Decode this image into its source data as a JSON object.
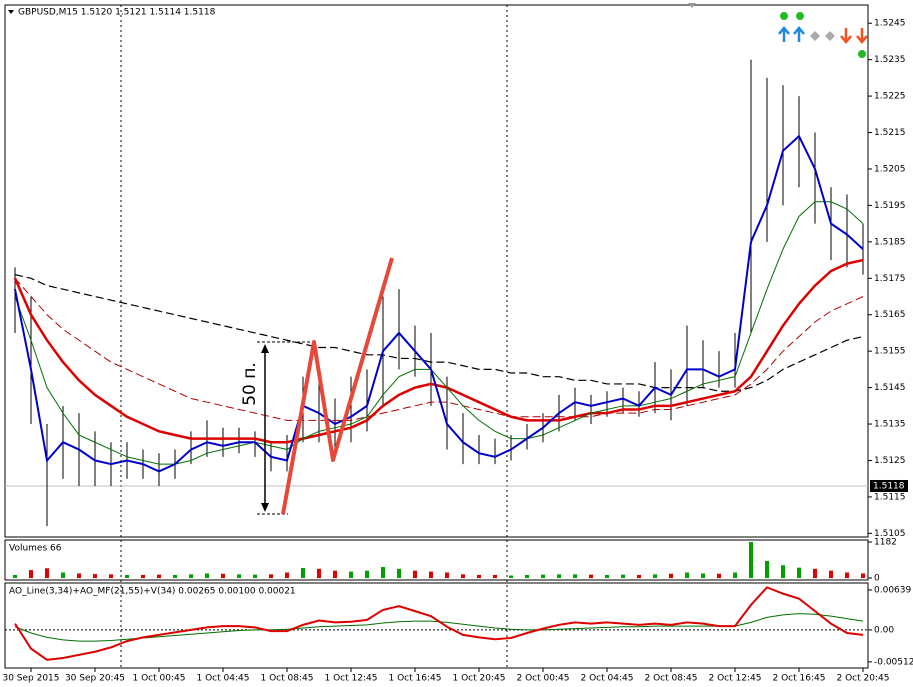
{
  "chart_data": [
    {
      "type": "ohlc",
      "title": "GBPUSD,M15  1.5120 1.5121 1.5114 1.5118",
      "annotation": "50 п.",
      "categories": [
        null,
        "30 Sep 2015",
        null,
        null,
        null,
        "30 Sep 20:45",
        null,
        null,
        null,
        "1 Oct 00:45",
        null,
        null,
        null,
        "1 Oct 04:45",
        null,
        null,
        null,
        "1 Oct 08:45",
        null,
        null,
        null,
        "1 Oct 12:45",
        null,
        null,
        null,
        "1 Oct 16:45",
        null,
        null,
        null,
        "1 Oct 20:45",
        null,
        null,
        null,
        "2 Oct 00:45",
        null,
        null,
        null,
        "2 Oct 04:45",
        null,
        null,
        null,
        "2 Oct 08:45",
        null,
        null,
        null,
        "2 Oct 12:45",
        null,
        null,
        null,
        "2 Oct 16:45",
        null,
        null,
        null,
        "2 Oct 20:45"
      ],
      "high": [
        1.5178,
        1.517,
        1.5135,
        1.514,
        1.5138,
        1.5133,
        1.513,
        1.513,
        1.5128,
        1.5127,
        1.5128,
        1.5133,
        1.5136,
        1.5134,
        1.5134,
        1.5133,
        1.513,
        1.5132,
        1.5148,
        1.5152,
        1.5142,
        1.5148,
        1.515,
        1.517,
        1.5172,
        1.5162,
        1.516,
        1.5148,
        1.5138,
        1.5132,
        1.5131,
        1.5132,
        1.5135,
        1.5138,
        1.5143,
        1.5145,
        1.5143,
        1.5144,
        1.5145,
        1.5144,
        1.5152,
        1.515,
        1.5162,
        1.5158,
        1.5155,
        1.516,
        1.5235,
        1.523,
        1.5228,
        1.5225,
        1.5215,
        1.52,
        1.5198,
        1.519
      ],
      "low": [
        1.516,
        1.5135,
        1.5107,
        1.512,
        1.5118,
        1.5118,
        1.5118,
        1.512,
        1.512,
        1.5118,
        1.512,
        1.5124,
        1.5126,
        1.5126,
        1.5127,
        1.5126,
        1.5122,
        1.5122,
        1.513,
        1.513,
        1.5128,
        1.513,
        1.5133,
        1.514,
        1.515,
        1.5148,
        1.514,
        1.5128,
        1.5124,
        1.5124,
        1.5124,
        1.5125,
        1.5128,
        1.513,
        1.5133,
        1.5136,
        1.5135,
        1.5137,
        1.5138,
        1.5137,
        1.5138,
        1.5136,
        1.514,
        1.5145,
        1.5145,
        1.5145,
        1.516,
        1.5185,
        1.5195,
        1.52,
        1.519,
        1.518,
        1.5178,
        1.5176
      ],
      "bar_color": "#000000",
      "series": [
        {
          "color": "#000000",
          "dashed": true,
          "width": 1.2,
          "values": [
            1.5176,
            1.5175,
            1.5173,
            1.5172,
            1.5171,
            1.517,
            1.5169,
            1.5168,
            1.5167,
            1.5166,
            1.5165,
            1.5164,
            1.5163,
            1.5162,
            1.5161,
            1.516,
            1.5159,
            1.5158,
            1.5157,
            1.5156,
            1.5156,
            1.5155,
            1.5154,
            1.5154,
            1.5153,
            1.5153,
            1.5152,
            1.5152,
            1.5151,
            1.515,
            1.515,
            1.5149,
            1.5149,
            1.5148,
            1.5148,
            1.5147,
            1.5147,
            1.5146,
            1.5146,
            1.5146,
            1.5145,
            1.5145,
            1.5145,
            1.5145,
            1.5144,
            1.5144,
            1.5145,
            1.5147,
            1.515,
            1.5152,
            1.5154,
            1.5156,
            1.5158,
            1.5159
          ]
        },
        {
          "color": "#b00000",
          "dashed": true,
          "width": 1,
          "values": [
            1.5175,
            1.517,
            1.5165,
            1.5161,
            1.5158,
            1.5155,
            1.5152,
            1.515,
            1.5148,
            1.5146,
            1.5144,
            1.5142,
            1.5141,
            1.514,
            1.5139,
            1.5138,
            1.5137,
            1.5136,
            1.5136,
            1.5136,
            1.5136,
            1.5136,
            1.5137,
            1.5138,
            1.5139,
            1.514,
            1.5141,
            1.5141,
            1.514,
            1.5139,
            1.5138,
            1.5137,
            1.5137,
            1.5137,
            1.5137,
            1.5137,
            1.5137,
            1.5138,
            1.5138,
            1.5138,
            1.5139,
            1.5139,
            1.514,
            1.5141,
            1.5142,
            1.5143,
            1.5146,
            1.515,
            1.5155,
            1.5159,
            1.5163,
            1.5166,
            1.5168,
            1.517
          ]
        },
        {
          "color": "#dd0000",
          "dashed": false,
          "width": 2.5,
          "values": [
            1.5175,
            1.5165,
            1.5158,
            1.5152,
            1.5147,
            1.5143,
            1.514,
            1.5137,
            1.5135,
            1.5133,
            1.5132,
            1.5131,
            1.5131,
            1.5131,
            1.5131,
            1.5131,
            1.513,
            1.513,
            1.5131,
            1.5132,
            1.5133,
            1.5134,
            1.5136,
            1.514,
            1.5143,
            1.5145,
            1.5146,
            1.5145,
            1.5143,
            1.5141,
            1.5139,
            1.5137,
            1.5136,
            1.5136,
            1.5136,
            1.5137,
            1.5138,
            1.5138,
            1.5139,
            1.5139,
            1.514,
            1.514,
            1.5141,
            1.5142,
            1.5143,
            1.5144,
            1.5148,
            1.5155,
            1.5162,
            1.5168,
            1.5173,
            1.5177,
            1.5179,
            1.518
          ]
        },
        {
          "color": "#007000",
          "dashed": false,
          "width": 1,
          "values": [
            1.517,
            1.5158,
            1.5145,
            1.5138,
            1.5132,
            1.513,
            1.5128,
            1.5126,
            1.5125,
            1.5124,
            1.5124,
            1.5125,
            1.5127,
            1.5128,
            1.5129,
            1.513,
            1.5129,
            1.5128,
            1.5131,
            1.5133,
            1.5134,
            1.5135,
            1.5137,
            1.5143,
            1.5148,
            1.515,
            1.515,
            1.5145,
            1.514,
            1.5136,
            1.5133,
            1.5131,
            1.5131,
            1.5132,
            1.5134,
            1.5136,
            1.5138,
            1.5139,
            1.514,
            1.514,
            1.5141,
            1.5142,
            1.5144,
            1.5146,
            1.5147,
            1.5148,
            1.516,
            1.5172,
            1.5183,
            1.5192,
            1.5196,
            1.5196,
            1.5194,
            1.519
          ]
        },
        {
          "color": "#0000cc",
          "dashed": false,
          "width": 2,
          "values": [
            1.5172,
            1.515,
            1.5125,
            1.513,
            1.5128,
            1.5125,
            1.5124,
            1.5125,
            1.5124,
            1.5122,
            1.5124,
            1.5128,
            1.513,
            1.5129,
            1.513,
            1.513,
            1.5126,
            1.5125,
            1.514,
            1.5138,
            1.5135,
            1.5137,
            1.514,
            1.5155,
            1.516,
            1.5155,
            1.515,
            1.5135,
            1.513,
            1.5127,
            1.5126,
            1.5128,
            1.5131,
            1.5134,
            1.5138,
            1.5141,
            1.514,
            1.5141,
            1.5142,
            1.514,
            1.5145,
            1.5143,
            1.515,
            1.515,
            1.5148,
            1.515,
            1.5185,
            1.5195,
            1.521,
            1.5214,
            1.5205,
            1.519,
            1.5187,
            1.5183
          ]
        }
      ],
      "last_price": 1.5118,
      "ylim": [
        1.5104,
        1.525
      ],
      "yticks": [
        1.5245,
        1.5235,
        1.5225,
        1.5215,
        1.5205,
        1.5195,
        1.5185,
        1.5175,
        1.5165,
        1.5155,
        1.5145,
        1.5135,
        1.5125,
        1.5115,
        1.5105
      ]
    },
    {
      "type": "volume",
      "title": "Volumes 66",
      "values": [
        100,
        260,
        320,
        180,
        150,
        130,
        120,
        100,
        100,
        110,
        100,
        120,
        150,
        140,
        120,
        110,
        120,
        180,
        330,
        300,
        240,
        210,
        240,
        360,
        300,
        240,
        210,
        180,
        120,
        100,
        100,
        80,
        100,
        110,
        120,
        120,
        110,
        100,
        110,
        100,
        120,
        140,
        180,
        150,
        140,
        180,
        1182,
        560,
        420,
        340,
        300,
        240,
        180,
        150
      ],
      "color_up": "#00a000",
      "color_down": "#e00000",
      "ylim": [
        0,
        1182
      ],
      "yticks": [
        1182,
        0
      ]
    },
    {
      "type": "oscillator",
      "title": "AO_Line(3,34)+AO_MF(21,55)+V(34) 0.00265 0.00100 0.00021",
      "series": [
        {
          "color": "#007000",
          "width": 1,
          "values": [
            0.0005,
            -0.0005,
            -0.0012,
            -0.0016,
            -0.0018,
            -0.0018,
            -0.0017,
            -0.0015,
            -0.0013,
            -0.0011,
            -0.0009,
            -0.0007,
            -0.0005,
            -0.0003,
            -0.0001,
            0,
            0,
            0.0001,
            0.0003,
            0.0005,
            0.0006,
            0.0007,
            0.0008,
            0.0011,
            0.0013,
            0.0014,
            0.0014,
            0.0012,
            0.0009,
            0.0006,
            0.0003,
            0.0001,
            0,
            0,
            0.0001,
            0.0002,
            0.0003,
            0.0004,
            0.0005,
            0.0005,
            0.0006,
            0.0006,
            0.0006,
            0.0006,
            0.0006,
            0.0006,
            0.0012,
            0.002,
            0.0024,
            0.0026,
            0.0025,
            0.0022,
            0.0018,
            0.0014
          ]
        },
        {
          "color": "#dd0000",
          "width": 2,
          "values": [
            0.001,
            -0.003,
            -0.0048,
            -0.0045,
            -0.004,
            -0.0035,
            -0.0028,
            -0.0018,
            -0.0012,
            -0.0008,
            -0.0004,
            0,
            0.0004,
            0.0006,
            0.0006,
            0.0004,
            -0.0002,
            -0.0002,
            0.0008,
            0.0015,
            0.0012,
            0.0013,
            0.0016,
            0.0032,
            0.0038,
            0.003,
            0.0022,
            0.0005,
            -0.0008,
            -0.0012,
            -0.0015,
            -0.0013,
            -0.0005,
            0.0002,
            0.0008,
            0.0012,
            0.001,
            0.0012,
            0.001,
            0.0008,
            0.001,
            0.0008,
            0.0012,
            0.001,
            0.0006,
            0.0006,
            0.004,
            0.0068,
            0.0058,
            0.005,
            0.003,
            0.001,
            -0.0005,
            -0.0008
          ]
        }
      ],
      "ylim": [
        -0.0061,
        0.0075
      ],
      "yticks": [
        0.00639,
        {
          "value": 0,
          "label": "0.00"
        },
        -0.00512
      ]
    }
  ]
}
